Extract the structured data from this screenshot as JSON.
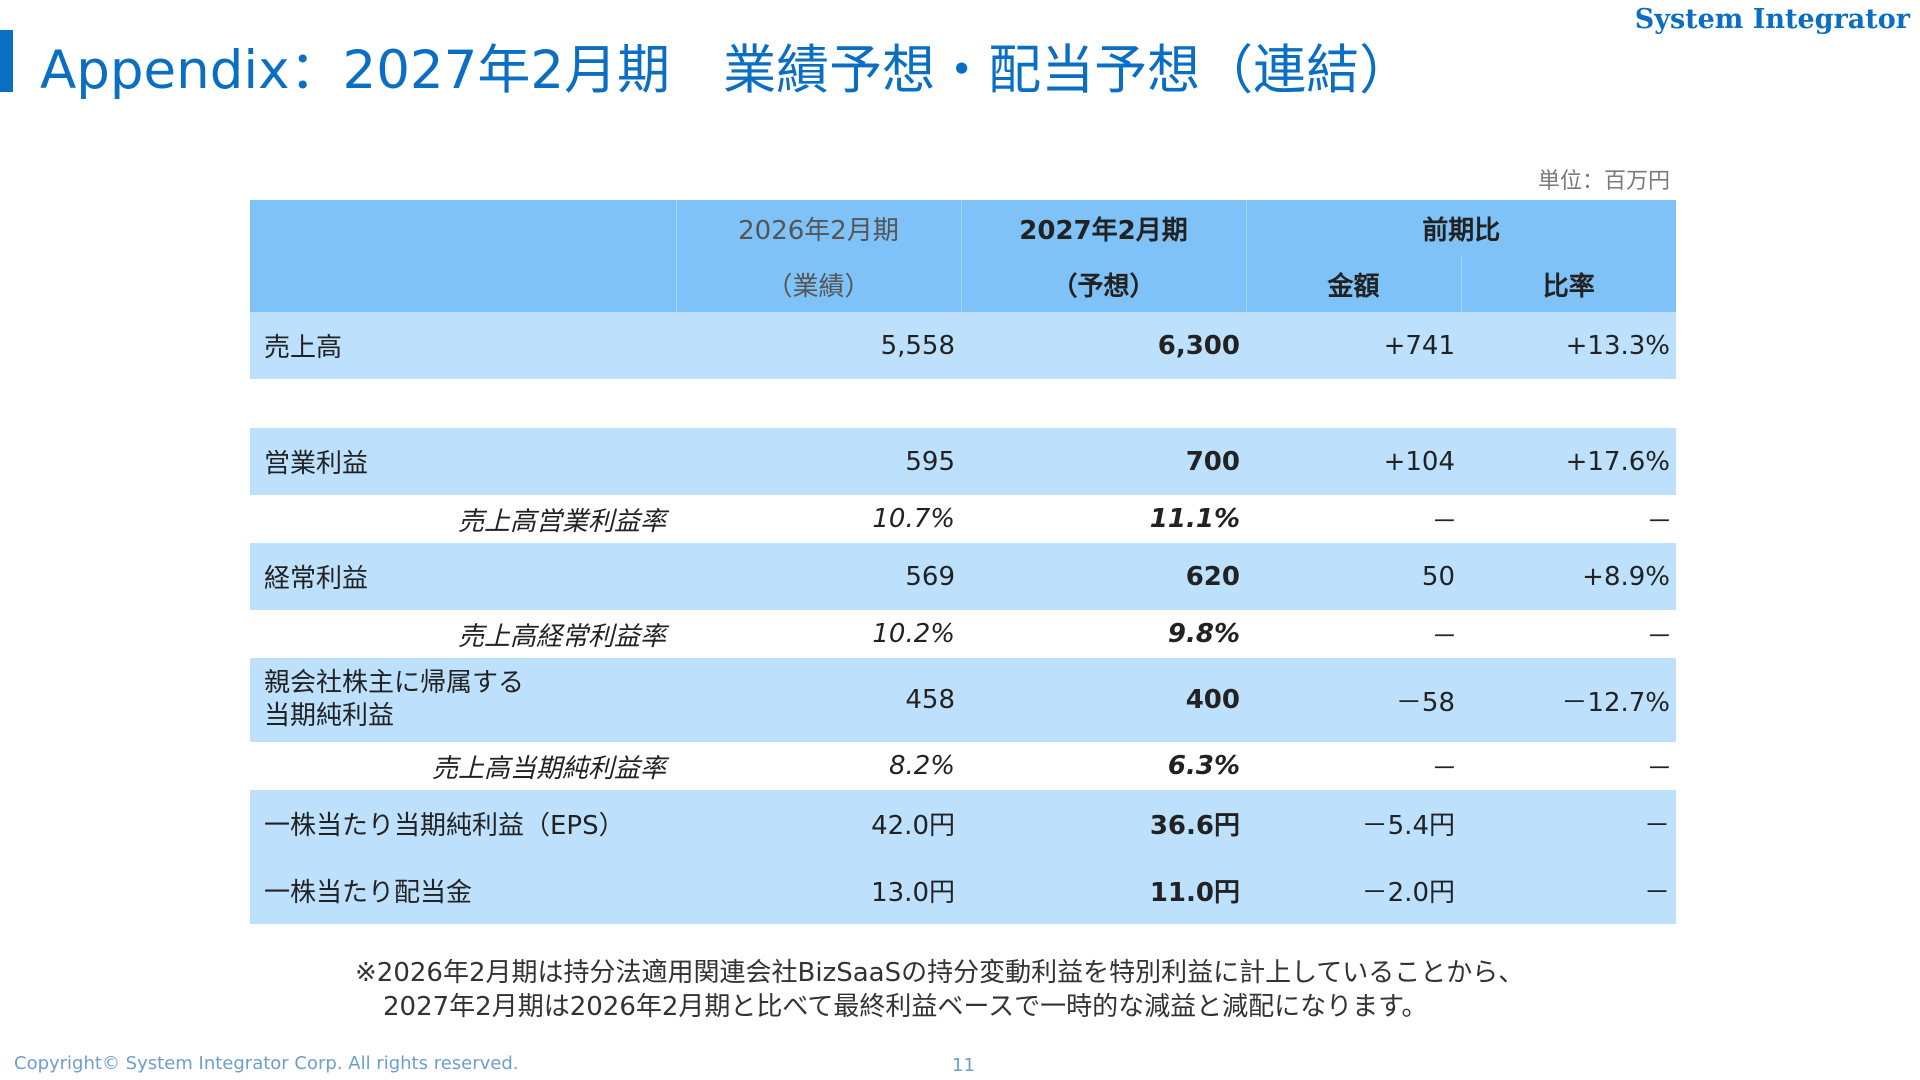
{
  "brand": "System Integrator",
  "title": "Appendix：2027年2月期　業績予想・配当予想（連結）",
  "unit": "単位：百万円",
  "header": {
    "col_prev_line1": "2026年2月期",
    "col_prev_line2": "（業績）",
    "col_fc_line1": "2027年2月期",
    "col_fc_line2": "（予想）",
    "col_yoy": "前期比",
    "col_amount": "金額",
    "col_ratio": "比率"
  },
  "rows": [
    {
      "label": "売上高",
      "prev": "5,558",
      "forecast": "6,300",
      "amount": "+741",
      "ratio": "+13.3%"
    },
    {
      "label": "営業利益",
      "prev": "595",
      "forecast": "700",
      "amount": "+104",
      "ratio": "+17.6%"
    },
    {
      "label": "売上高営業利益率",
      "prev": "10.7%",
      "forecast": "11.1%",
      "amount": "－",
      "ratio": "－"
    },
    {
      "label": "経常利益",
      "prev": "569",
      "forecast": "620",
      "amount": "50",
      "ratio": "+8.9%"
    },
    {
      "label": "売上高経常利益率",
      "prev": "10.2%",
      "forecast": "9.8%",
      "amount": "－",
      "ratio": "－"
    },
    {
      "label_line1": "親会社株主に帰属する",
      "label_line2": "当期純利益",
      "prev": "458",
      "forecast": "400",
      "amount": "－58",
      "ratio": "－12.7%"
    },
    {
      "label": "売上高当期純利益率",
      "prev": "8.2%",
      "forecast": "6.3%",
      "amount": "－",
      "ratio": "－"
    },
    {
      "label": "一株当たり当期純利益（EPS）",
      "prev": "42.0円",
      "forecast": "36.6円",
      "amount": "－5.4円",
      "ratio": "－"
    },
    {
      "label": "一株当たり配当金",
      "prev": "13.0円",
      "forecast": "11.0円",
      "amount": "－2.0円",
      "ratio": "－"
    }
  ],
  "note": {
    "line1": "※2026年2月期は持分法適用関連会社BizSaaSの持分変動利益を特別利益に計上していることから、",
    "line2": "2027年2月期は2026年2月期と比べて最終利益ベースで一時的な減益と減配になります。"
  },
  "footer": {
    "copyright": "Copyright© System Integrator Corp. All rights reserved.",
    "page_number": "11"
  },
  "colors": {
    "accent": "#0a6fc2",
    "header_bg": "#7fc2f7",
    "row_bg": "#bde1fc"
  }
}
